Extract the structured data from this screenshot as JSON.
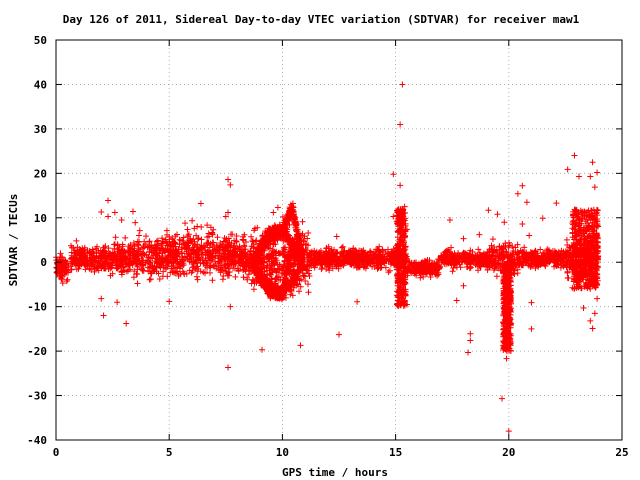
{
  "chart_data": {
    "type": "scatter",
    "title": "Day 126 of 2011, Sidereal Day-to-day VTEC variation (SDTVAR) for receiver maw1",
    "xlabel": "GPS time / hours",
    "ylabel": "SDTVAR / TECUs",
    "xlim": [
      0,
      25
    ],
    "ylim": [
      -40,
      50
    ],
    "xticks": [
      0,
      5,
      10,
      15,
      20,
      25
    ],
    "yticks": [
      -40,
      -30,
      -20,
      -10,
      0,
      10,
      20,
      30,
      40,
      50
    ],
    "grid": true,
    "marker": "plus",
    "color": "#ff0000",
    "series": [
      {
        "values": [
          [
            15.3,
            40
          ],
          [
            15.2,
            31
          ],
          [
            14.9,
            19.8
          ],
          [
            15.2,
            17.3
          ],
          [
            15.4,
            12.5
          ],
          [
            15.3,
            11.5
          ],
          [
            7.6,
            18.6
          ],
          [
            7.7,
            17.4
          ],
          [
            7.6,
            11.2
          ],
          [
            7.5,
            10.3
          ],
          [
            7.7,
            -10
          ],
          [
            7.6,
            -23.7
          ],
          [
            6.4,
            13.2
          ],
          [
            5.7,
            8.8
          ],
          [
            4.9,
            7.1
          ],
          [
            5.0,
            5.7
          ],
          [
            5.0,
            -8.8
          ],
          [
            2.3,
            13.9
          ],
          [
            2.0,
            11.3
          ],
          [
            2.3,
            10.3
          ],
          [
            2.6,
            11.2
          ],
          [
            2.9,
            9.5
          ],
          [
            3.4,
            11.4
          ],
          [
            3.5,
            8.9
          ],
          [
            3.7,
            7.1
          ],
          [
            2.0,
            -8.2
          ],
          [
            2.1,
            -12
          ],
          [
            2.7,
            -9.0
          ],
          [
            3.1,
            -13.8
          ],
          [
            3.6,
            -4.8
          ],
          [
            2.5,
            -2.6
          ],
          [
            0.9,
            4.8
          ],
          [
            0.7,
            0.7
          ],
          [
            0.1,
            -1.5
          ],
          [
            0.2,
            2.0
          ],
          [
            0.3,
            -4.7
          ],
          [
            0.4,
            0.0
          ],
          [
            9.1,
            -19.7
          ],
          [
            9.6,
            11.2
          ],
          [
            9.8,
            12.3
          ],
          [
            10.8,
            -18.7
          ],
          [
            12.5,
            -16.3
          ],
          [
            13.3,
            -8.9
          ],
          [
            12.4,
            5.8
          ],
          [
            14.9,
            10.3
          ],
          [
            15.5,
            7.4
          ],
          [
            15.5,
            -9.5
          ],
          [
            17.4,
            9.5
          ],
          [
            18.0,
            5.3
          ],
          [
            18.3,
            -16.1
          ],
          [
            18.3,
            -17.6
          ],
          [
            18.2,
            -20.3
          ],
          [
            17.7,
            -8.6
          ],
          [
            18.0,
            -5.3
          ],
          [
            19.1,
            11.7
          ],
          [
            19.5,
            10.8
          ],
          [
            18.7,
            6.2
          ],
          [
            19.3,
            5.2
          ],
          [
            19.8,
            9.0
          ],
          [
            19.7,
            -30.7
          ],
          [
            20.0,
            -38.0
          ],
          [
            19.9,
            -21.7
          ],
          [
            20.0,
            -13.0
          ],
          [
            20.4,
            15.4
          ],
          [
            20.6,
            17.2
          ],
          [
            20.8,
            13.5
          ],
          [
            21.0,
            -15.0
          ],
          [
            21.0,
            -9.1
          ],
          [
            20.9,
            6.0
          ],
          [
            20.6,
            8.6
          ],
          [
            21.5,
            9.9
          ],
          [
            22.1,
            13.3
          ],
          [
            22.6,
            20.9
          ],
          [
            22.9,
            24.0
          ],
          [
            23.1,
            19.3
          ],
          [
            23.7,
            22.5
          ],
          [
            23.9,
            20.2
          ],
          [
            23.6,
            19.3
          ],
          [
            23.8,
            16.9
          ],
          [
            23.6,
            10.3
          ],
          [
            23.3,
            -10.3
          ],
          [
            23.8,
            -11.5
          ],
          [
            23.6,
            -13.2
          ],
          [
            23.7,
            -14.9
          ],
          [
            23.9,
            -8.2
          ],
          [
            22.9,
            -5.8
          ]
        ]
      }
    ]
  }
}
